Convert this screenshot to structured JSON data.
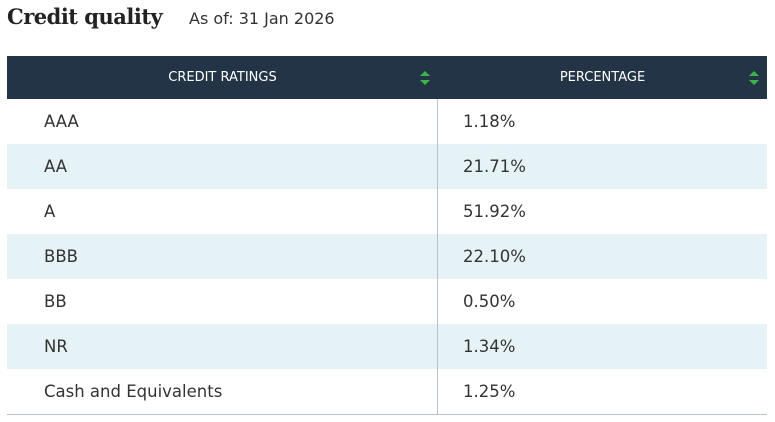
{
  "header": {
    "title": "Credit quality",
    "as_of": "As of: 31 Jan 2026"
  },
  "table": {
    "columns": [
      "CREDIT RATINGS",
      "PERCENTAGE"
    ],
    "rows": [
      [
        "AAA",
        "1.18%"
      ],
      [
        "AA",
        "21.71%"
      ],
      [
        "A",
        "51.92%"
      ],
      [
        "BBB",
        "22.10%"
      ],
      [
        "BB",
        "0.50%"
      ],
      [
        "NR",
        "1.34%"
      ],
      [
        "Cash and Equivalents",
        "1.25%"
      ]
    ]
  }
}
